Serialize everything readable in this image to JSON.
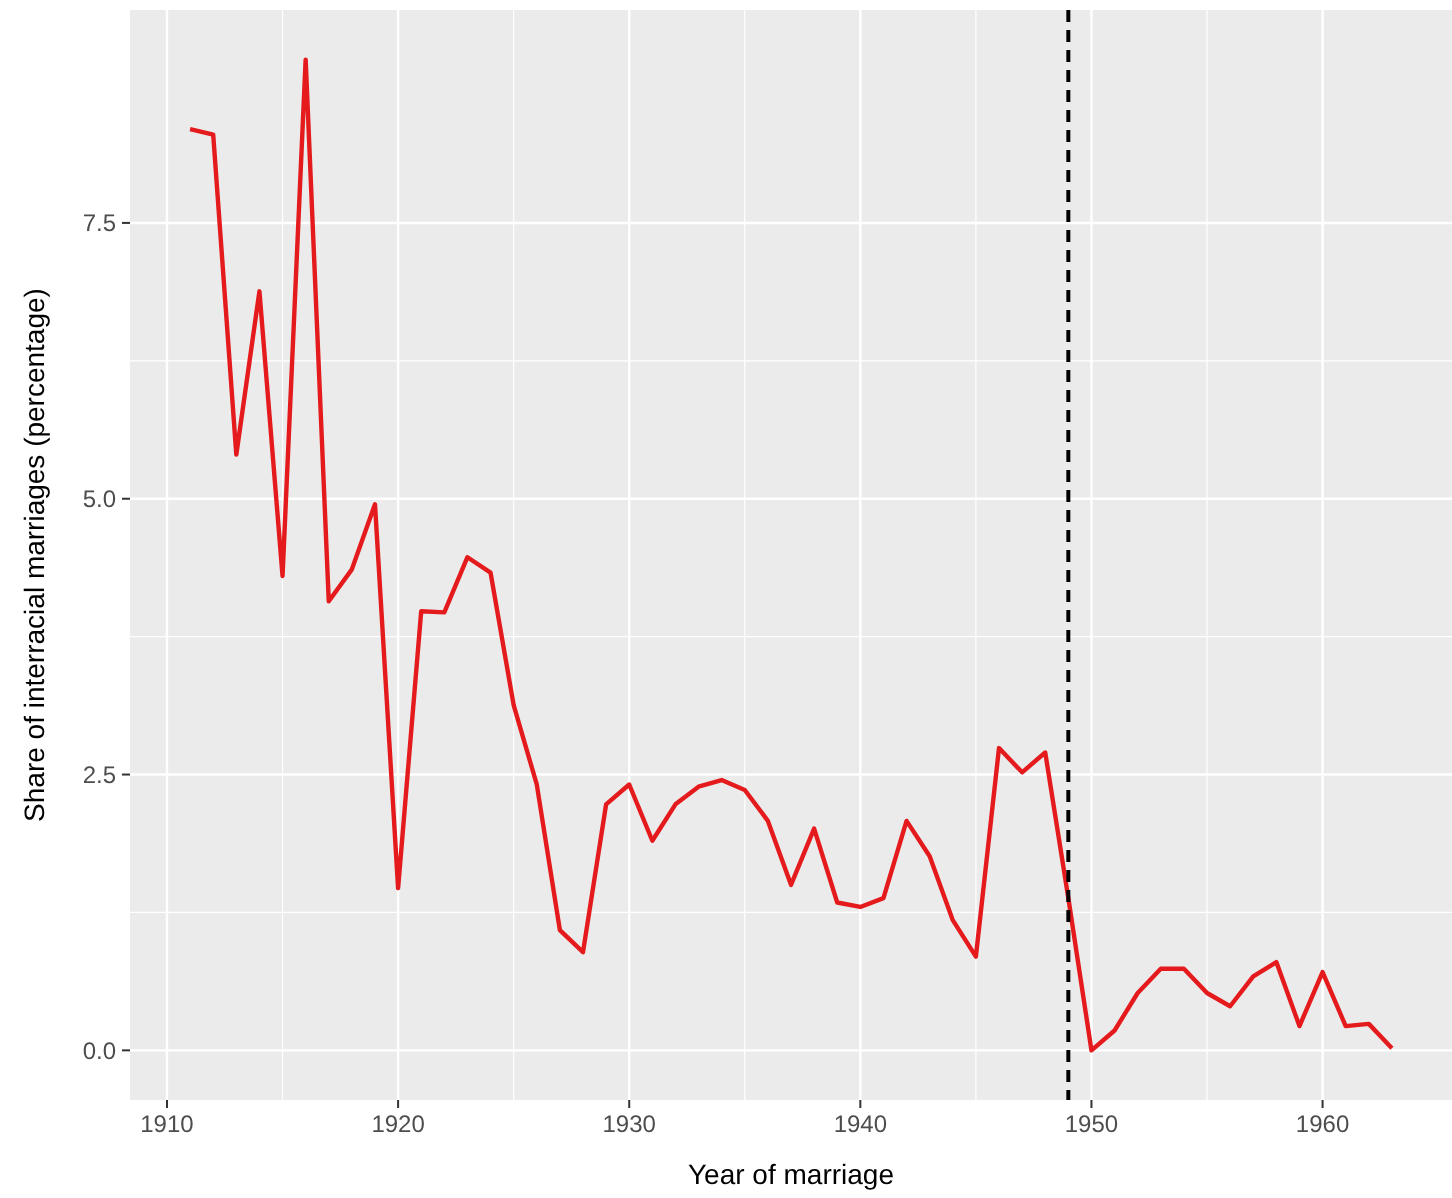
{
  "chart_data": {
    "type": "line",
    "xlabel": "Year of marriage",
    "ylabel": "Share of interracial marriages (percentage)",
    "x": [
      1911,
      1912,
      1913,
      1914,
      1915,
      1916,
      1917,
      1918,
      1919,
      1920,
      1921,
      1922,
      1923,
      1924,
      1925,
      1926,
      1927,
      1928,
      1929,
      1930,
      1931,
      1932,
      1933,
      1934,
      1935,
      1936,
      1937,
      1938,
      1939,
      1940,
      1941,
      1942,
      1943,
      1944,
      1945,
      1946,
      1947,
      1948,
      1949,
      1950,
      1951,
      1952,
      1953,
      1954,
      1955,
      1956,
      1957,
      1958,
      1959,
      1960,
      1961,
      1962,
      1963
    ],
    "series": [
      {
        "color": "#e41a1c",
        "values": [
          8.35,
          8.3,
          5.4,
          6.88,
          4.3,
          8.98,
          4.07,
          4.36,
          4.95,
          1.47,
          3.98,
          3.97,
          4.47,
          4.33,
          3.13,
          2.41,
          1.09,
          0.89,
          2.23,
          2.41,
          1.9,
          2.23,
          2.39,
          2.45,
          2.36,
          2.08,
          1.5,
          2.01,
          1.34,
          1.3,
          1.38,
          2.08,
          1.76,
          1.18,
          0.85,
          2.74,
          2.52,
          2.7,
          1.38,
          0.0,
          0.18,
          0.52,
          0.74,
          0.74,
          0.52,
          0.4,
          0.67,
          0.8,
          0.22,
          0.71,
          0.22,
          0.24,
          0.02
        ]
      }
    ],
    "xlim": [
      1908.4,
      1965.6
    ],
    "ylim": [
      -0.45,
      9.43
    ],
    "xticks": [
      1910,
      1920,
      1930,
      1940,
      1950,
      1960
    ],
    "yticks": [
      {
        "value": 0,
        "label": "0.0"
      },
      {
        "value": 2.5,
        "label": "2.5"
      },
      {
        "value": 5,
        "label": "5.0"
      },
      {
        "value": 7.5,
        "label": "7.5"
      }
    ],
    "ref_lines": [
      {
        "axis": "x",
        "value": 1949,
        "color": "#000000",
        "line_style": "dashed"
      }
    ],
    "grid": true,
    "line_style": "solid"
  }
}
